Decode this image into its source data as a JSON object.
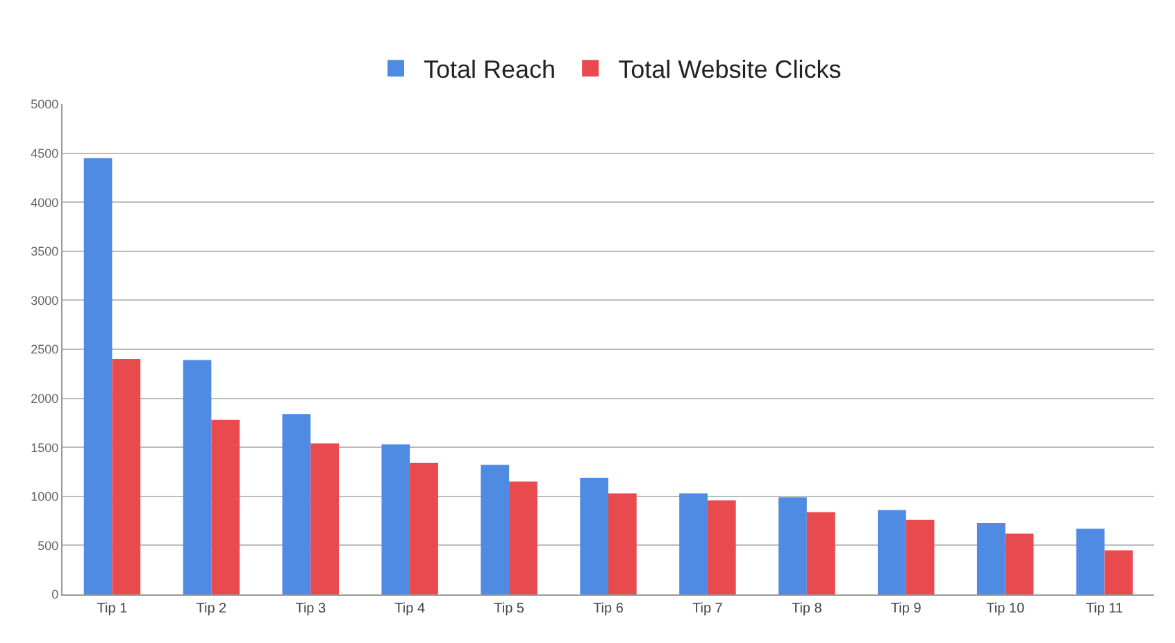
{
  "chart_data": {
    "type": "bar",
    "categories": [
      "Tip 1",
      "Tip 2",
      "Tip 3",
      "Tip 4",
      "Tip 5",
      "Tip 6",
      "Tip 7",
      "Tip 8",
      "Tip 9",
      "Tip 10",
      "Tip 11"
    ],
    "series": [
      {
        "name": "Total Reach",
        "color": "#4f8ae3",
        "values": [
          4450,
          2390,
          1840,
          1530,
          1320,
          1190,
          1030,
          990,
          860,
          730,
          670
        ]
      },
      {
        "name": "Total Website Clicks",
        "color": "#e84a4e",
        "values": [
          2400,
          1780,
          1540,
          1340,
          1150,
          1030,
          960,
          840,
          760,
          620,
          450
        ]
      }
    ],
    "ylim": [
      0,
      5000
    ],
    "yticks": [
      0,
      500,
      1000,
      1500,
      2000,
      2500,
      3000,
      3500,
      4000,
      4500,
      5000
    ],
    "grid": "y",
    "legend": "top"
  }
}
